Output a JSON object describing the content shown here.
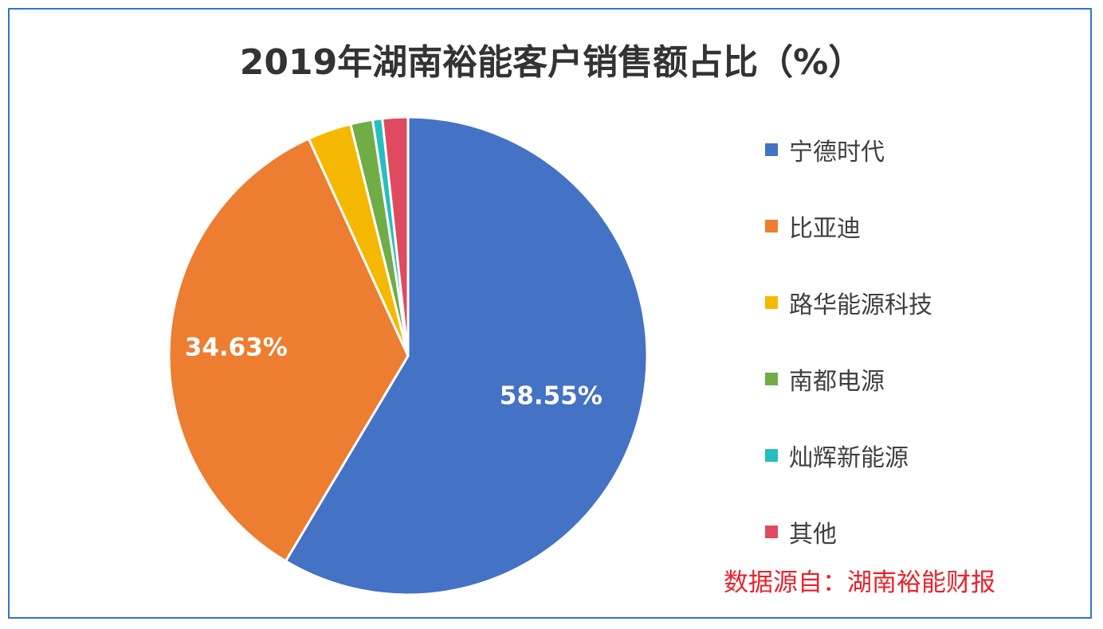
{
  "chart_data": {
    "type": "pie",
    "title": "2019年湖南裕能客户销售额占比（%）",
    "categories": [
      "宁德时代",
      "比亚迪",
      "路华能源科技",
      "南都电源",
      "灿辉新能源",
      "其他"
    ],
    "values": [
      58.55,
      34.63,
      2.95,
      1.5,
      0.65,
      1.72
    ],
    "colors": [
      "#4472c4",
      "#ed7d31",
      "#f5b800",
      "#70ad47",
      "#26bfbf",
      "#e04a5f"
    ],
    "data_labels": [
      "58.55%",
      "34.63%",
      "",
      "",
      "",
      ""
    ],
    "legend_position": "right"
  },
  "source": "数据源自：湖南裕能财报"
}
